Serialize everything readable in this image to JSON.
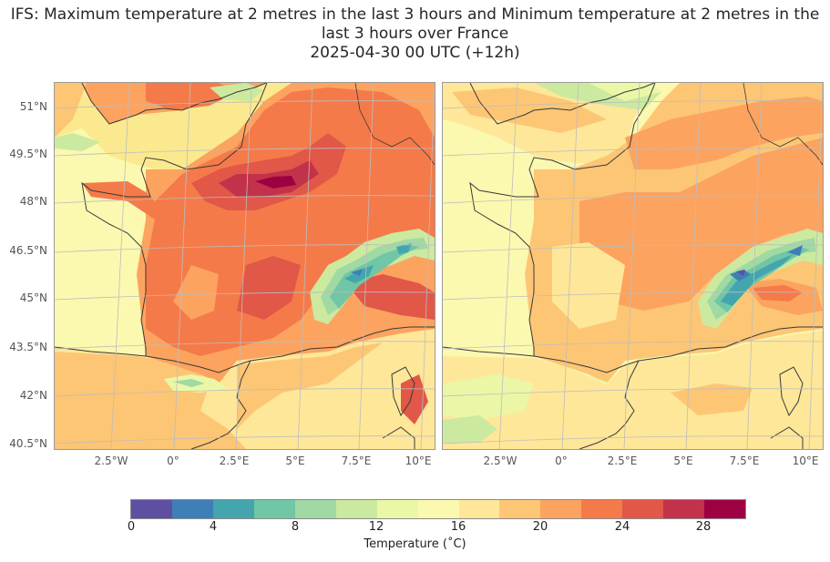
{
  "title": {
    "line1": "IFS: Maximum temperature at 2 metres in the last 3 hours and Minimum temperature at 2 metres in the",
    "line2": "last 3 hours over France",
    "line3": "2025-04-30 00 UTC (+12h)"
  },
  "lat_labels": [
    "51°N",
    "49.5°N",
    "48°N",
    "46.5°N",
    "45°N",
    "43.5°N",
    "42°N",
    "40.5°N"
  ],
  "lon_labels": [
    "2.5°W",
    "0°",
    "2.5°E",
    "5°E",
    "7.5°E",
    "10°E"
  ],
  "colorbar": {
    "colors": [
      "#5e4fa2",
      "#3f7fb8",
      "#44a5ae",
      "#70c6a5",
      "#a0d9a3",
      "#cbea9f",
      "#ebf7a6",
      "#fbf8b0",
      "#fee799",
      "#fdc675",
      "#fca35f",
      "#f57a49",
      "#e15748",
      "#c2324a",
      "#9e0142"
    ],
    "ticks": [
      "0",
      "4",
      "8",
      "12",
      "16",
      "20",
      "24",
      "28"
    ],
    "label": "Temperature (˚C)"
  },
  "palette": {
    "hot": "#f57a49",
    "very_hot": "#e15748",
    "extreme": "#c2324a",
    "warm": "#fca35f",
    "mild_warm": "#fdc675",
    "mild": "#fee799",
    "cool": "#fbf8b0",
    "fresh": "#ebf7a6",
    "cold1": "#cbea9f",
    "cold2": "#a0d9a3",
    "cold3": "#70c6a5",
    "cold4": "#44a5ae",
    "cold5": "#3f7fb8",
    "coast": "#3a3a3a",
    "grid": "#bdbdbd"
  }
}
